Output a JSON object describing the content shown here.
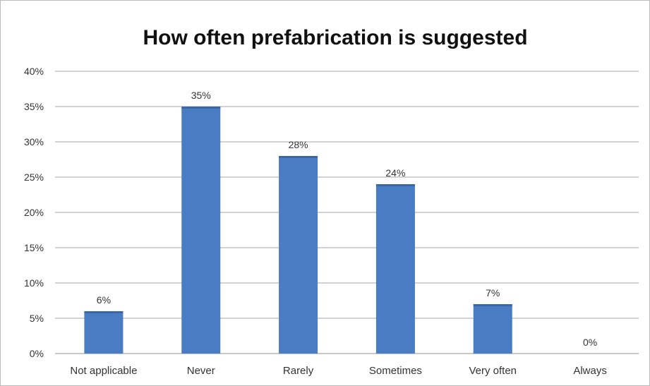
{
  "chart_data": {
    "type": "bar",
    "title": "How often prefabrication is suggested",
    "categories": [
      "Not applicable",
      "Never",
      "Rarely",
      "Sometimes",
      "Very often",
      "Always"
    ],
    "values": [
      6,
      35,
      28,
      24,
      7,
      0
    ],
    "value_labels": [
      "6%",
      "35%",
      "28%",
      "24%",
      "7%",
      "0%"
    ],
    "yticks": [
      "0%",
      "5%",
      "10%",
      "15%",
      "20%",
      "25%",
      "30%",
      "35%",
      "40%"
    ],
    "ylim": [
      0,
      40
    ],
    "grid": true,
    "legend": "none",
    "bar_color": "#4a7cc3",
    "grid_color": "#a6a6a6"
  }
}
